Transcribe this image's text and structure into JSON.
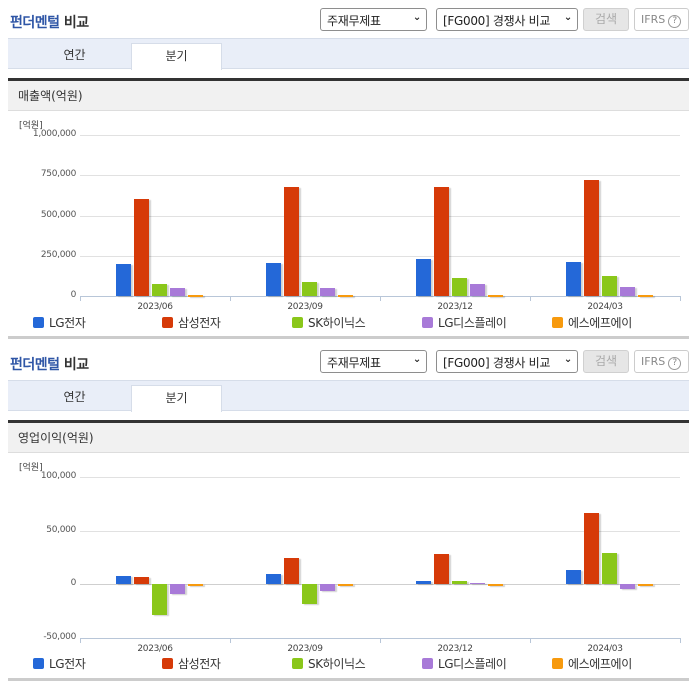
{
  "panels": [
    {
      "title_highlight": "펀더멘털",
      "title_rest": " 비교",
      "select1": "주재무제표",
      "select2": "[FG000] 경쟁사 비교",
      "search_label": "검색",
      "ifrs_label": "IFRS",
      "ifrs_help": "?",
      "tabs": [
        "연간",
        "분기"
      ],
      "active_tab": "분기",
      "section_title": "매출액(억원)",
      "unit_label": "[억원]"
    },
    {
      "title_highlight": "펀더멘털",
      "title_rest": " 비교",
      "select1": "주재무제표",
      "select2": "[FG000] 경쟁사 비교",
      "search_label": "검색",
      "ifrs_label": "IFRS",
      "ifrs_help": "?",
      "tabs": [
        "연간",
        "분기"
      ],
      "active_tab": "분기",
      "section_title": "영업이익(억원)",
      "unit_label": "[억원]"
    }
  ],
  "legend": [
    {
      "label": "LG전자",
      "color": "#2468d8"
    },
    {
      "label": "삼성전자",
      "color": "#d63a08"
    },
    {
      "label": "SK하이닉스",
      "color": "#8ac71a"
    },
    {
      "label": "LG디스플레이",
      "color": "#a87ad8"
    },
    {
      "label": "에스에프에이",
      "color": "#f79a0e"
    }
  ],
  "chart_data": [
    {
      "type": "bar",
      "title": "매출액(억원)",
      "ylabel": "[억원]",
      "xlabel": "",
      "categories": [
        "2023/06",
        "2023/09",
        "2023/12",
        "2024/03"
      ],
      "yticks": [
        "1,000,000",
        "750,000",
        "500,000",
        "250,000",
        "0"
      ],
      "ylim": [
        0,
        1000000
      ],
      "grid": true,
      "legend_position": "bottom",
      "series": [
        {
          "name": "LG전자",
          "values": [
            197000,
            202000,
            230000,
            210000
          ]
        },
        {
          "name": "삼성전자",
          "values": [
            600000,
            674000,
            675000,
            719000
          ]
        },
        {
          "name": "SK하이닉스",
          "values": [
            73000,
            90000,
            113000,
            124000
          ]
        },
        {
          "name": "LG디스플레이",
          "values": [
            48000,
            48000,
            74000,
            53000
          ]
        },
        {
          "name": "에스에프에이",
          "values": [
            4000,
            4000,
            4000,
            4000
          ]
        }
      ]
    },
    {
      "type": "bar",
      "title": "영업이익(억원)",
      "ylabel": "[억원]",
      "xlabel": "",
      "categories": [
        "2023/06",
        "2023/09",
        "2023/12",
        "2024/03"
      ],
      "yticks": [
        "100,000",
        "50,000",
        "0",
        "-50,000"
      ],
      "ylim": [
        -50000,
        100000
      ],
      "grid": true,
      "legend_position": "bottom",
      "series": [
        {
          "name": "LG전자",
          "values": [
            7400,
            10000,
            3100,
            13300
          ]
        },
        {
          "name": "삼성전자",
          "values": [
            6700,
            24300,
            28200,
            66100
          ]
        },
        {
          "name": "SK하이닉스",
          "values": [
            -29000,
            -18000,
            3500,
            28900
          ]
        },
        {
          "name": "LG디스플레이",
          "values": [
            -8800,
            -6600,
            1300,
            -4700
          ]
        },
        {
          "name": "에스에프에이",
          "values": [
            -1000,
            300,
            -1000,
            -1000
          ]
        }
      ]
    }
  ]
}
